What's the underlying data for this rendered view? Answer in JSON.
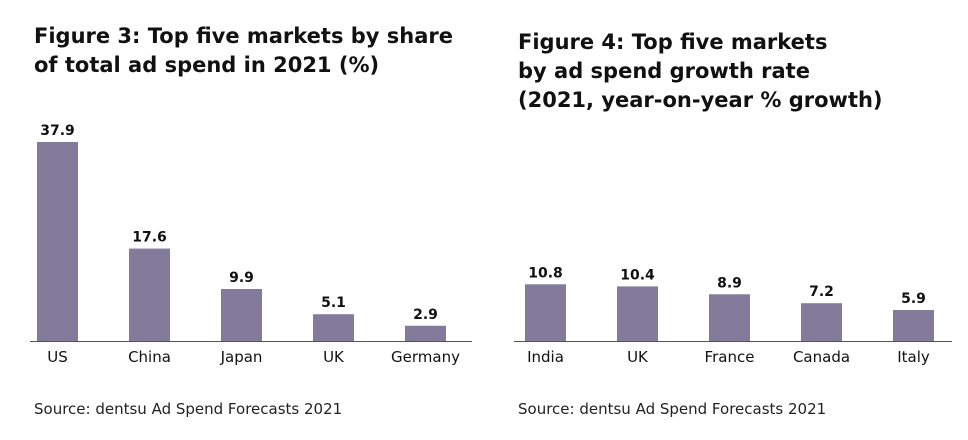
{
  "chart_data": [
    {
      "type": "bar",
      "title_lines": [
        "Figure 3: Top five markets by share",
        "of total ad spend in 2021 (%)"
      ],
      "categories": [
        "US",
        "China",
        "Japan",
        "UK",
        "Germany"
      ],
      "values": [
        37.9,
        17.6,
        9.9,
        5.1,
        2.9
      ],
      "data_labels": [
        "37.9",
        "17.6",
        "9.9",
        "5.1",
        "2.9"
      ],
      "xlabel": "",
      "ylabel": "",
      "ylim": [
        0,
        37.9
      ],
      "grid": false,
      "legend": "none",
      "bar_color": "#827b9b",
      "source": "Source: dentsu Ad Spend Forecasts 2021"
    },
    {
      "type": "bar",
      "title_lines": [
        "Figure 4: Top five markets",
        "by ad spend growth rate",
        "(2021, year-on-year % growth)"
      ],
      "categories": [
        "India",
        "UK",
        "France",
        "Canada",
        "Italy"
      ],
      "values": [
        10.8,
        10.4,
        8.9,
        7.2,
        5.9
      ],
      "data_labels": [
        "10.8",
        "10.4",
        "8.9",
        "7.2",
        "5.9"
      ],
      "xlabel": "",
      "ylabel": "",
      "ylim": [
        0,
        37.9
      ],
      "grid": false,
      "legend": "none",
      "bar_color": "#827b9b",
      "source": "Source: dentsu Ad Spend Forecasts 2021"
    }
  ]
}
